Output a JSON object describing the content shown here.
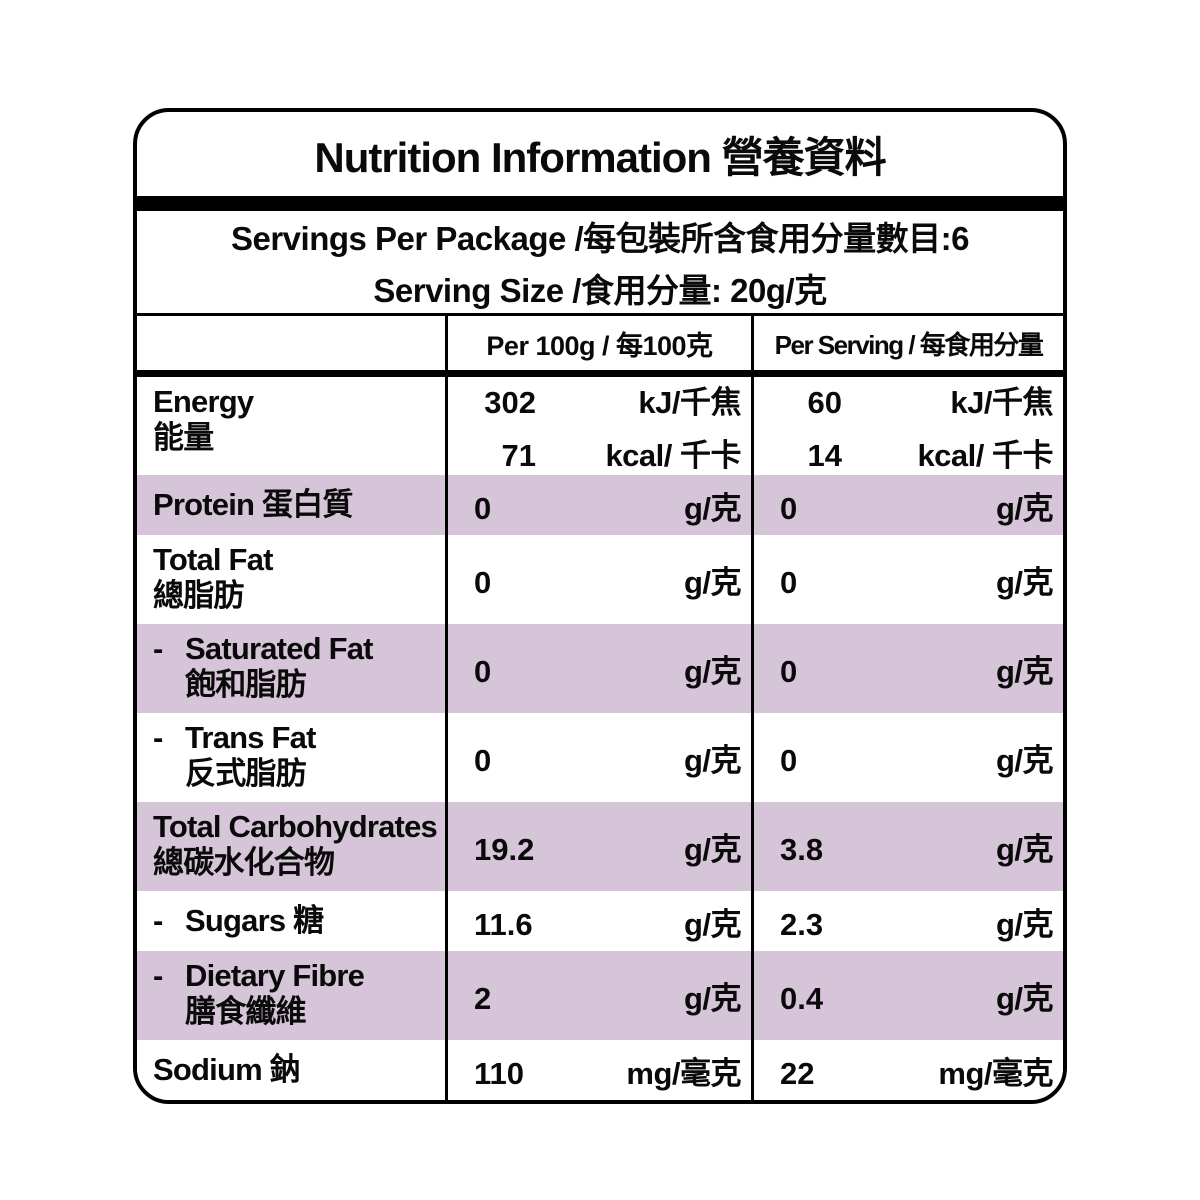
{
  "colors": {
    "row_highlight": "#d6c4d8",
    "divider_bar": "#000000",
    "text": "#0a0a0a",
    "background": "#ffffff"
  },
  "header": {
    "title": "Nutrition Information 營養資料",
    "servings_per_package": "Servings Per Package /每包裝所含食用分量數目:6",
    "serving_size": "Serving Size /食用分量: 20g/克"
  },
  "table": {
    "col_per_100g": "Per 100g / 每100克",
    "col_per_serving": "Per Serving / 每食用分量",
    "rows": [
      {
        "dash": false,
        "shaded": false,
        "label_lines": [
          "Energy",
          "能量"
        ],
        "per100g": [
          {
            "value": "302",
            "unit": "kJ/千焦"
          },
          {
            "value": "71",
            "unit": "kcal/ 千卡"
          }
        ],
        "per_serving": [
          {
            "value": "60",
            "unit": "kJ/千焦"
          },
          {
            "value": "14",
            "unit": "kcal/ 千卡"
          }
        ]
      },
      {
        "dash": false,
        "shaded": true,
        "label_lines": [
          "Protein 蛋白質"
        ],
        "per100g": [
          {
            "value": "0",
            "unit": "g/克"
          }
        ],
        "per_serving": [
          {
            "value": "0",
            "unit": "g/克"
          }
        ]
      },
      {
        "dash": false,
        "shaded": false,
        "label_lines": [
          "Total Fat",
          "總脂肪"
        ],
        "per100g": [
          {
            "value": "0",
            "unit": "g/克"
          }
        ],
        "per_serving": [
          {
            "value": "0",
            "unit": "g/克"
          }
        ]
      },
      {
        "dash": true,
        "shaded": true,
        "label_lines": [
          "Saturated Fat",
          "飽和脂肪"
        ],
        "per100g": [
          {
            "value": "0",
            "unit": "g/克"
          }
        ],
        "per_serving": [
          {
            "value": "0",
            "unit": "g/克"
          }
        ]
      },
      {
        "dash": true,
        "shaded": false,
        "label_lines": [
          "Trans Fat",
          "反式脂肪"
        ],
        "per100g": [
          {
            "value": "0",
            "unit": "g/克"
          }
        ],
        "per_serving": [
          {
            "value": "0",
            "unit": "g/克"
          }
        ]
      },
      {
        "dash": false,
        "shaded": true,
        "label_lines": [
          "Total Carbohydrates",
          "總碳水化合物"
        ],
        "per100g": [
          {
            "value": "19.2",
            "unit": "g/克"
          }
        ],
        "per_serving": [
          {
            "value": "3.8",
            "unit": "g/克"
          }
        ]
      },
      {
        "dash": true,
        "shaded": false,
        "label_lines": [
          "Sugars 糖"
        ],
        "per100g": [
          {
            "value": "11.6",
            "unit": "g/克"
          }
        ],
        "per_serving": [
          {
            "value": "2.3",
            "unit": "g/克"
          }
        ]
      },
      {
        "dash": true,
        "shaded": true,
        "label_lines": [
          "Dietary Fibre",
          "膳食纖維"
        ],
        "per100g": [
          {
            "value": "2",
            "unit": "g/克"
          }
        ],
        "per_serving": [
          {
            "value": "0.4",
            "unit": "g/克"
          }
        ]
      },
      {
        "dash": false,
        "shaded": false,
        "label_lines": [
          "Sodium 鈉"
        ],
        "per100g": [
          {
            "value": "110",
            "unit": "mg/毫克"
          }
        ],
        "per_serving": [
          {
            "value": "22",
            "unit": "mg/毫克"
          }
        ]
      }
    ]
  }
}
